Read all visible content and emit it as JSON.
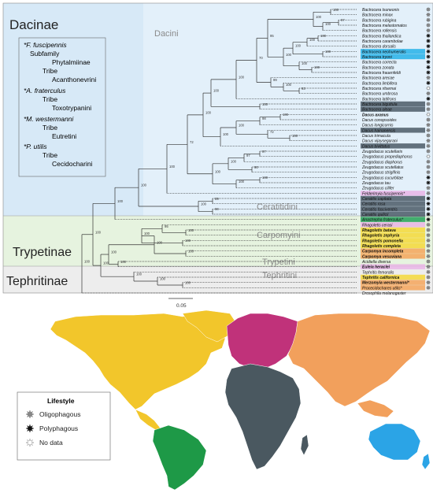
{
  "subfamilies": [
    {
      "id": "dacinae",
      "name": "Dacinae",
      "color": "#e3f0fa"
    },
    {
      "id": "trypetinae",
      "name": "Trypetinae",
      "color": "#e6f3df"
    },
    {
      "id": "tephritinae",
      "name": "Tephritinae",
      "color": "#eeeeee"
    }
  ],
  "tribes": [
    {
      "id": "dacini",
      "name": "Dacini"
    },
    {
      "id": "ceratitidini",
      "name": "Ceratitidini"
    },
    {
      "id": "carpomyini",
      "name": "Carpomyini"
    },
    {
      "id": "trypetini",
      "name": "Trypetini"
    },
    {
      "id": "tephritini",
      "name": "Tephritini"
    }
  ],
  "classification_box": [
    {
      "species": "*F. fuscipennis",
      "ranks": [
        [
          "Subfamily",
          "Phytalmiinae"
        ],
        [
          "Tribe",
          "Acanthonevrini"
        ]
      ]
    },
    {
      "species": "*A. fraterculus",
      "ranks": [
        [
          "Tribe",
          "Toxotrypanini"
        ]
      ]
    },
    {
      "species": "*M. westermanni",
      "ranks": [
        [
          "Tribe",
          "Eutretini"
        ]
      ]
    },
    {
      "species": "*P. utilis",
      "ranks": [
        [
          "Tribe",
          "Cecidocharini"
        ]
      ]
    }
  ],
  "taxa": [
    {
      "name": "Bactrocera tsuneonis",
      "bold": false,
      "bg": "",
      "mark": "oligo"
    },
    {
      "name": "Bactrocera minax",
      "bold": false,
      "bg": "",
      "mark": "oligo"
    },
    {
      "name": "Bactrocera rubigina",
      "bold": false,
      "bg": "",
      "mark": "oligo"
    },
    {
      "name": "Bactrocera melastomatos",
      "bold": false,
      "bg": "",
      "mark": "oligo"
    },
    {
      "name": "Bactrocera rollensis",
      "bold": false,
      "bg": "",
      "mark": "oligo"
    },
    {
      "name": "Bactrocera thailandica",
      "bold": false,
      "bg": "",
      "mark": "poly"
    },
    {
      "name": "Bactrocera carambolae",
      "bold": false,
      "bg": "",
      "mark": "poly"
    },
    {
      "name": "Bactrocera dorsalis",
      "bold": false,
      "bg": "",
      "mark": "poly"
    },
    {
      "name": "Bactrocera neohumeralis",
      "bold": false,
      "bg": "#26b2e8",
      "mark": "poly"
    },
    {
      "name": "Bactrocera tryoni",
      "bold": false,
      "bg": "#26b2e8",
      "mark": "poly"
    },
    {
      "name": "Bactrocera correcta",
      "bold": false,
      "bg": "",
      "mark": "poly"
    },
    {
      "name": "Bactrocera zonata",
      "bold": false,
      "bg": "",
      "mark": "poly"
    },
    {
      "name": "Bactrocera frauenfeldi",
      "bold": false,
      "bg": "",
      "mark": "poly"
    },
    {
      "name": "Bactrocera arecae",
      "bold": false,
      "bg": "",
      "mark": "oligo"
    },
    {
      "name": "Bactrocera limbifera",
      "bold": false,
      "bg": "",
      "mark": "poly"
    },
    {
      "name": "Bactrocera ritsemai",
      "bold": false,
      "bg": "",
      "mark": "nodata"
    },
    {
      "name": "Bactrocera umbrosa",
      "bold": false,
      "bg": "",
      "mark": "oligo"
    },
    {
      "name": "Bactrocera latifrons",
      "bold": false,
      "bg": "",
      "mark": "poly"
    },
    {
      "name": "Bactrocera biguttula",
      "bold": false,
      "bg": "#4b5a66",
      "mark": "oligo"
    },
    {
      "name": "Bactrocera oleae",
      "bold": false,
      "bg": "#4b5a66",
      "mark": "oligo"
    },
    {
      "name": "Dacus axanus",
      "bold": true,
      "bg": "",
      "mark": "nodata"
    },
    {
      "name": "Dacus conopsoides",
      "bold": false,
      "bg": "",
      "mark": "oligo"
    },
    {
      "name": "Dacus longicornis",
      "bold": false,
      "bg": "",
      "mark": "oligo"
    },
    {
      "name": "Dacus hainanensis",
      "bold": false,
      "bg": "#4b5a66",
      "mark": "oligo"
    },
    {
      "name": "Dacus trimacula",
      "bold": false,
      "bg": "",
      "mark": "oligo"
    },
    {
      "name": "Dacus vijaysegarani",
      "bold": false,
      "bg": "",
      "mark": "oligo"
    },
    {
      "name": "Dacus bivittatus",
      "bold": false,
      "bg": "#4b5a66",
      "mark": "oligo"
    },
    {
      "name": "Zeugodacus scutellaris",
      "bold": false,
      "bg": "",
      "mark": "oligo"
    },
    {
      "name": "Zeugodacus propediaphorus",
      "bold": false,
      "bg": "",
      "mark": "nodata"
    },
    {
      "name": "Zeugodacus diaphorus",
      "bold": false,
      "bg": "",
      "mark": "oligo"
    },
    {
      "name": "Zeugodacus scutellatus",
      "bold": false,
      "bg": "",
      "mark": "oligo"
    },
    {
      "name": "Zeugodacus strigifinis",
      "bold": false,
      "bg": "",
      "mark": "oligo"
    },
    {
      "name": "Zeugodacus cucurbitae",
      "bold": false,
      "bg": "",
      "mark": "poly"
    },
    {
      "name": "Zeugodacus tau",
      "bold": false,
      "bg": "",
      "mark": "poly"
    },
    {
      "name": "Zeugodacus cilifer",
      "bold": false,
      "bg": "",
      "mark": "oligo"
    },
    {
      "name": "Felderimyia fuscipennis*",
      "bold": false,
      "bg": "#e9b4e6",
      "mark": "oligo"
    },
    {
      "name": "Ceratitis capitata",
      "bold": false,
      "bg": "#4b5a66",
      "mark": "poly"
    },
    {
      "name": "Ceratitis rosa",
      "bold": false,
      "bg": "#4b5a66",
      "mark": "poly"
    },
    {
      "name": "Ceratitis fasciventris",
      "bold": false,
      "bg": "#4b5a66",
      "mark": "poly"
    },
    {
      "name": "Ceratitis quilicii",
      "bold": false,
      "bg": "#4b5a66",
      "mark": "poly"
    },
    {
      "name": "Anastrepha fraterculus*",
      "bold": false,
      "bg": "#25a05a",
      "mark": "poly"
    },
    {
      "name": "Rhagoletis cerasi",
      "bold": false,
      "bg": "#e9b4e6",
      "mark": "oligo"
    },
    {
      "name": "Rhagoletis batava",
      "bold": true,
      "bg": "#f5d83a",
      "mark": "oligo"
    },
    {
      "name": "Rhagoletis zephyria",
      "bold": true,
      "bg": "#f5d83a",
      "mark": "oligo"
    },
    {
      "name": "Rhagoletis pomonella",
      "bold": true,
      "bg": "#f5d83a",
      "mark": "oligo"
    },
    {
      "name": "Rhagoletis completa",
      "bold": true,
      "bg": "#f5d83a",
      "mark": "oligo"
    },
    {
      "name": "Carpomya incompleta",
      "bold": true,
      "bg": "#f5a45a",
      "mark": "oligo"
    },
    {
      "name": "Carpomya vesuviana",
      "bold": true,
      "bg": "#f5a45a",
      "mark": "oligo"
    },
    {
      "name": "Acidiella diversa",
      "bold": false,
      "bg": "",
      "mark": "oligo"
    },
    {
      "name": "Euleia heraclei",
      "bold": true,
      "bg": "#e9b4e6",
      "mark": "oligo"
    },
    {
      "name": "Tephritis femoralis",
      "bold": false,
      "bg": "",
      "mark": "oligo"
    },
    {
      "name": "Tephritis californica",
      "bold": true,
      "bg": "#f5d83a",
      "mark": "oligo"
    },
    {
      "name": "Merzomyia westermanni*",
      "bold": true,
      "bg": "#f5a45a",
      "mark": "oligo"
    },
    {
      "name": "Procecidochares utilis*",
      "bold": false,
      "bg": "#f5a45a",
      "mark": "oligo"
    },
    {
      "name": "Drosophila melanogaster",
      "bold": false,
      "bg": "",
      "mark": ""
    }
  ],
  "support_values": [
    "100",
    "100",
    "100",
    "100",
    "100",
    "72",
    "100",
    "100",
    "100",
    "70",
    "95",
    "100",
    "100",
    "100",
    "97",
    "100",
    "100",
    "100",
    "100",
    "100",
    "100",
    "100",
    "99",
    "100",
    "93",
    "100",
    "100",
    "100",
    "98",
    "100",
    "72",
    "100",
    "100",
    "100",
    "97",
    "97",
    "90",
    "100",
    "100",
    "100",
    "89",
    "90",
    "100",
    "100",
    "100",
    "100",
    "95",
    "100",
    "100",
    "100",
    "100",
    "100",
    "100",
    "100"
  ],
  "scale_bar": "0.05",
  "legend": {
    "title": "Lifestyle",
    "items": [
      {
        "label": "Oligophagous",
        "mark": "oligo"
      },
      {
        "label": "Polyphagous",
        "mark": "poly"
      },
      {
        "label": "No data",
        "mark": "nodata"
      }
    ]
  },
  "region_colors": {
    "north_america": "#f2c62b",
    "south_america": "#1e9947",
    "europe": "#c0327a",
    "africa": "#4a5860",
    "asia": "#f2a05c",
    "oceania": "#2ba4e6",
    "antarctica": "#ffffff"
  }
}
